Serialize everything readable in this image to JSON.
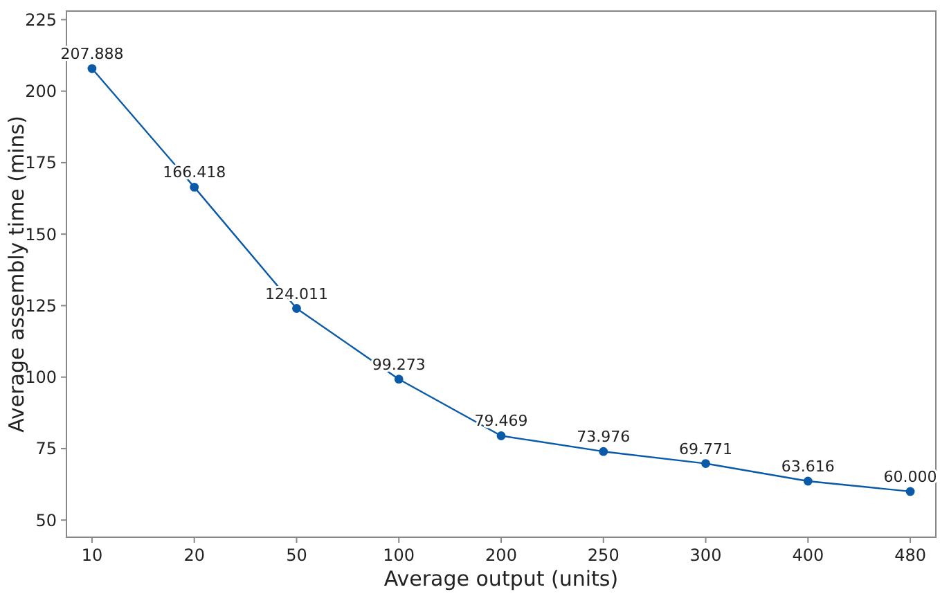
{
  "chart_data": {
    "type": "line",
    "xlabel": "Average output (units)",
    "ylabel": "Average assembly time (mins)",
    "categories": [
      "10",
      "20",
      "50",
      "100",
      "200",
      "250",
      "300",
      "400",
      "480"
    ],
    "series": [
      {
        "color": "#0a5aa8",
        "values": [
          207.888,
          166.418,
          124.011,
          99.273,
          79.469,
          73.976,
          69.771,
          63.616,
          60.0
        ],
        "value_labels": [
          "207.888",
          "166.418",
          "124.011",
          "99.273",
          "79.469",
          "73.976",
          "69.771",
          "63.616",
          "60.000"
        ]
      }
    ],
    "ylim": [
      44,
      228
    ],
    "yticks": [
      50,
      75,
      100,
      125,
      150,
      175,
      200,
      225
    ],
    "grid": false,
    "marker": "circle",
    "line_style": "solid"
  }
}
